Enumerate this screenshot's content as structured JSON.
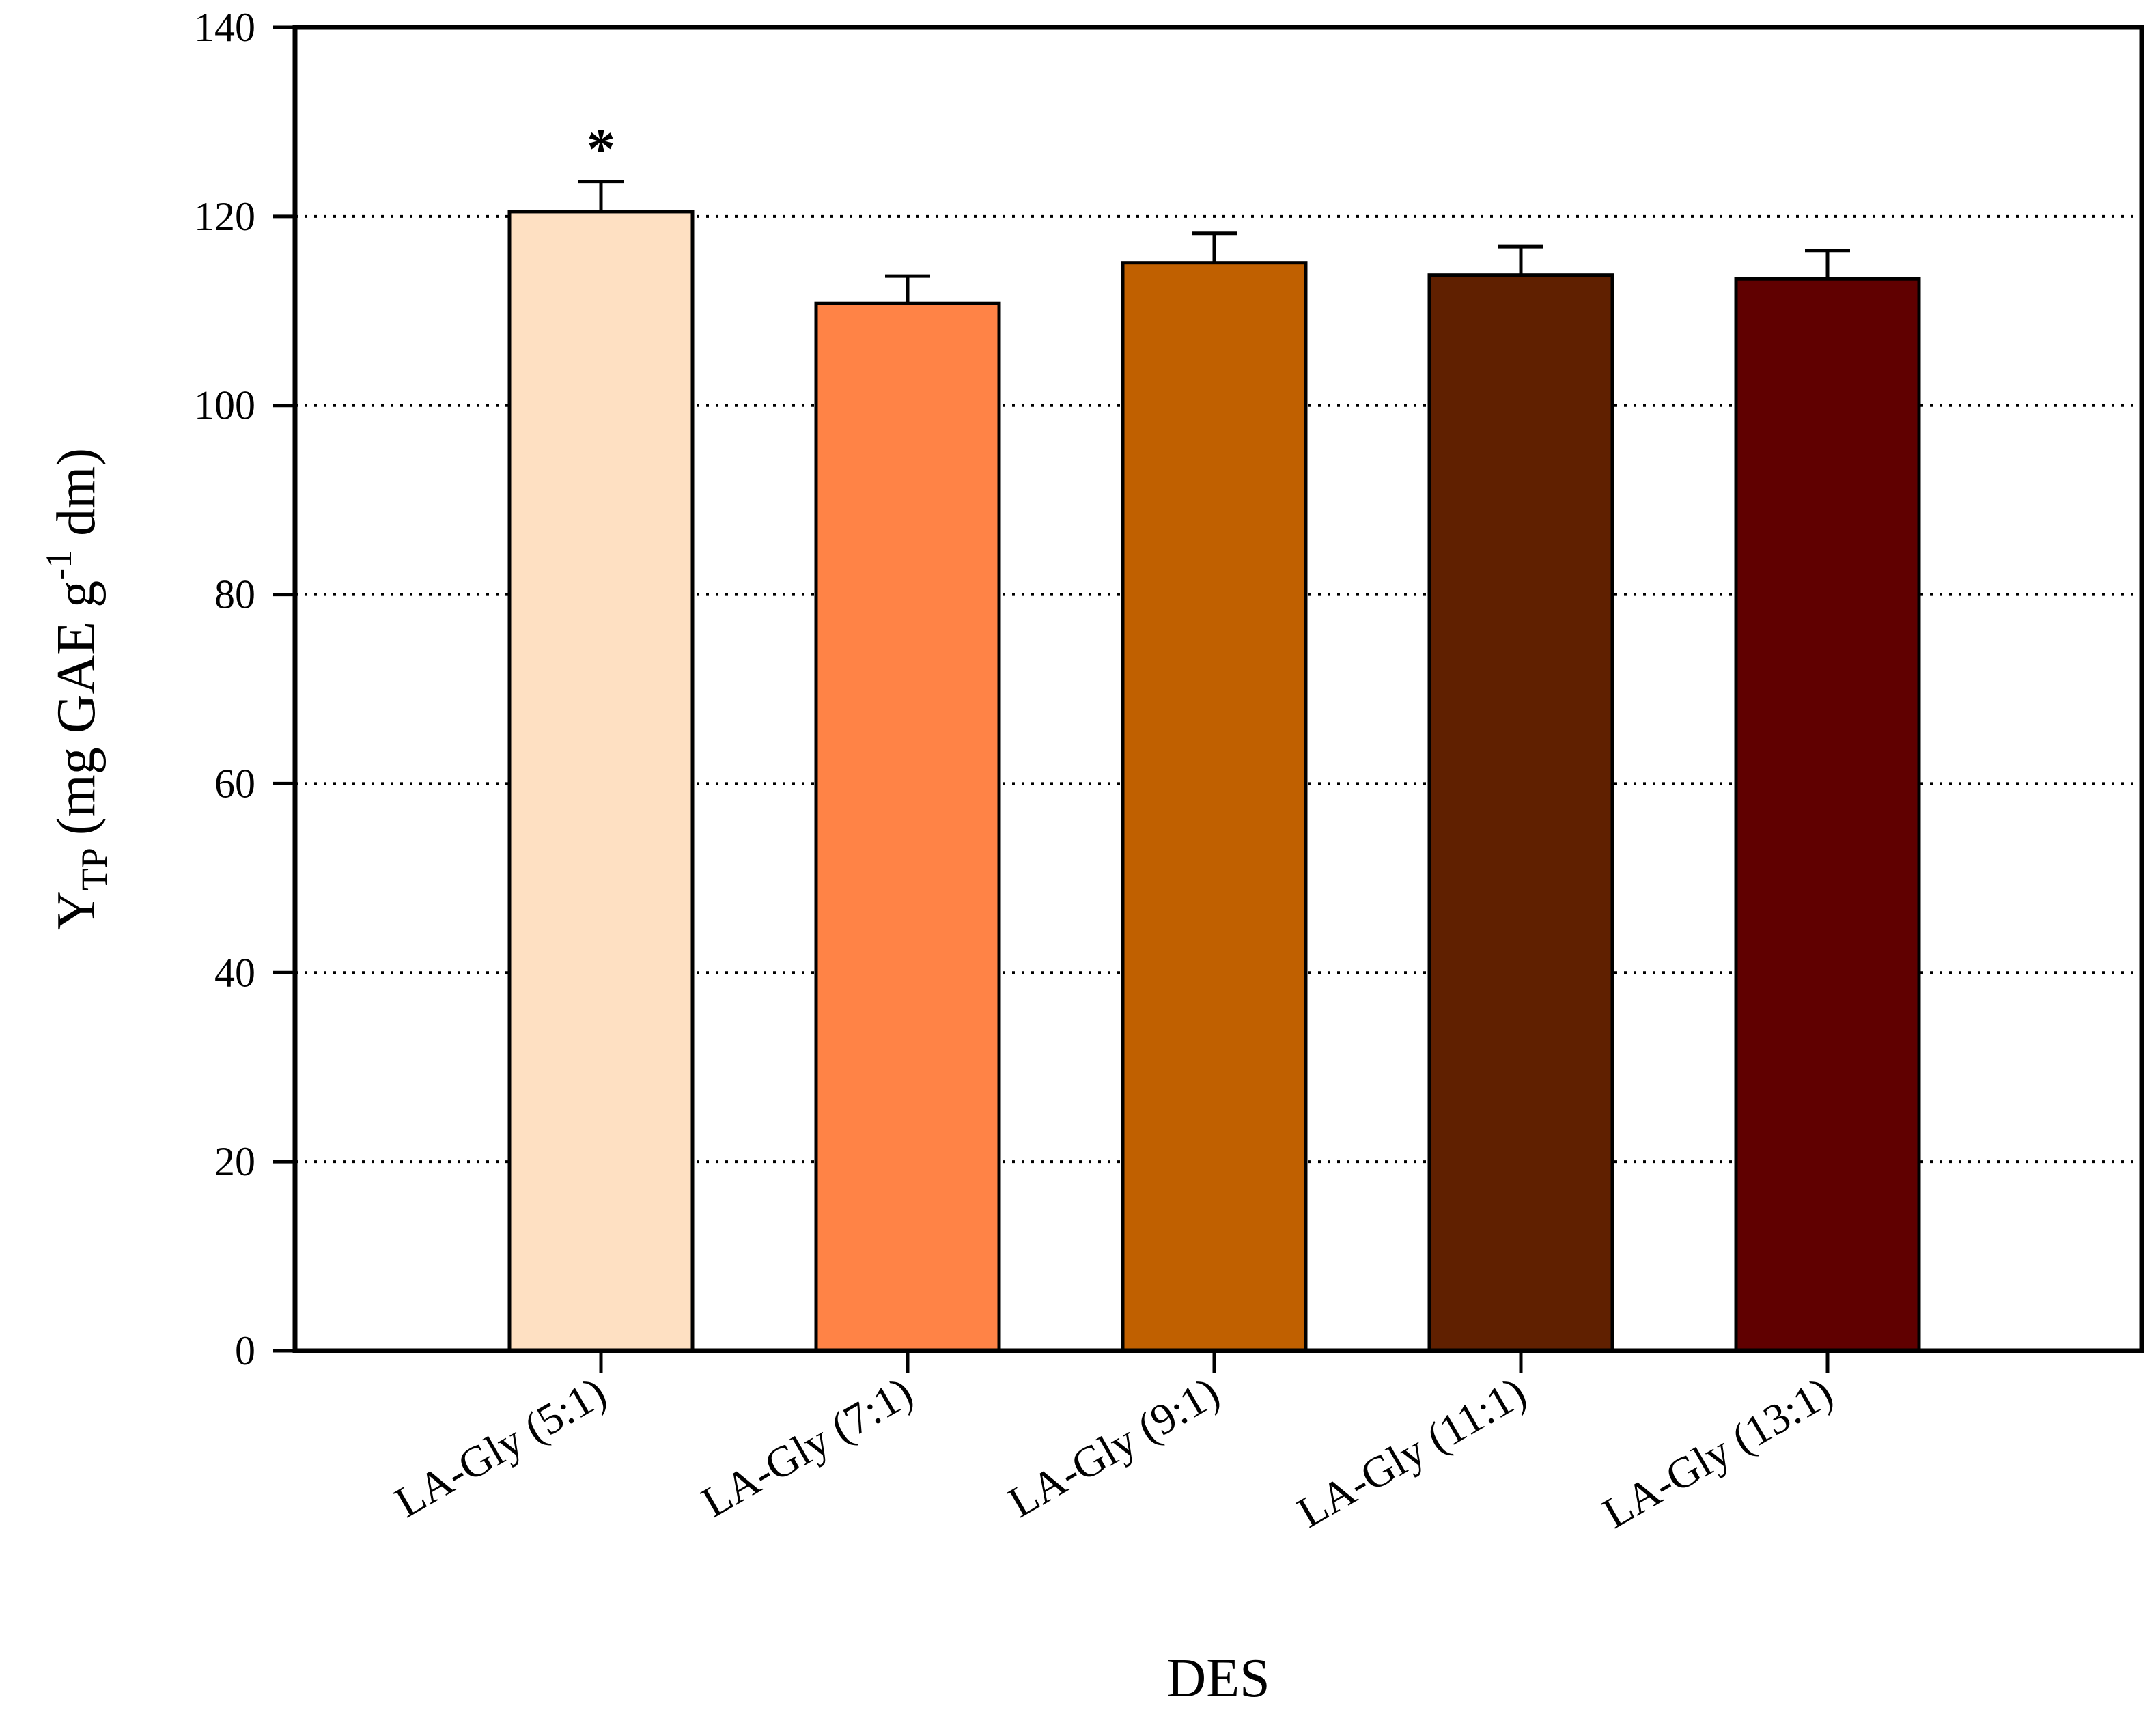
{
  "chart_data": {
    "type": "bar",
    "title": "",
    "xlabel": "DES",
    "ylabel": {
      "main": "Y",
      "subscript": "TP",
      "unit_prefix": "(mg GAE g",
      "superscript": "-1",
      "unit_suffix": " dm)"
    },
    "ylim": [
      0,
      140
    ],
    "yticks": [
      0,
      20,
      40,
      60,
      80,
      100,
      120,
      140
    ],
    "grid": "horizontal-dotted",
    "categories": [
      "LA-Gly (5:1)",
      "LA-Gly (7:1)",
      "LA-Gly (9:1)",
      "LA-Gly (11:1)",
      "LA-Gly (13:1)"
    ],
    "values": [
      120.5,
      110.8,
      115.1,
      113.8,
      113.4
    ],
    "errors": [
      3.2,
      2.9,
      3.1,
      3.0,
      3.0
    ],
    "annotations": [
      "*",
      "",
      "",
      "",
      ""
    ],
    "colors": [
      "#FEE0C2",
      "#FF8346",
      "#C06000",
      "#602000",
      "#600000"
    ]
  }
}
